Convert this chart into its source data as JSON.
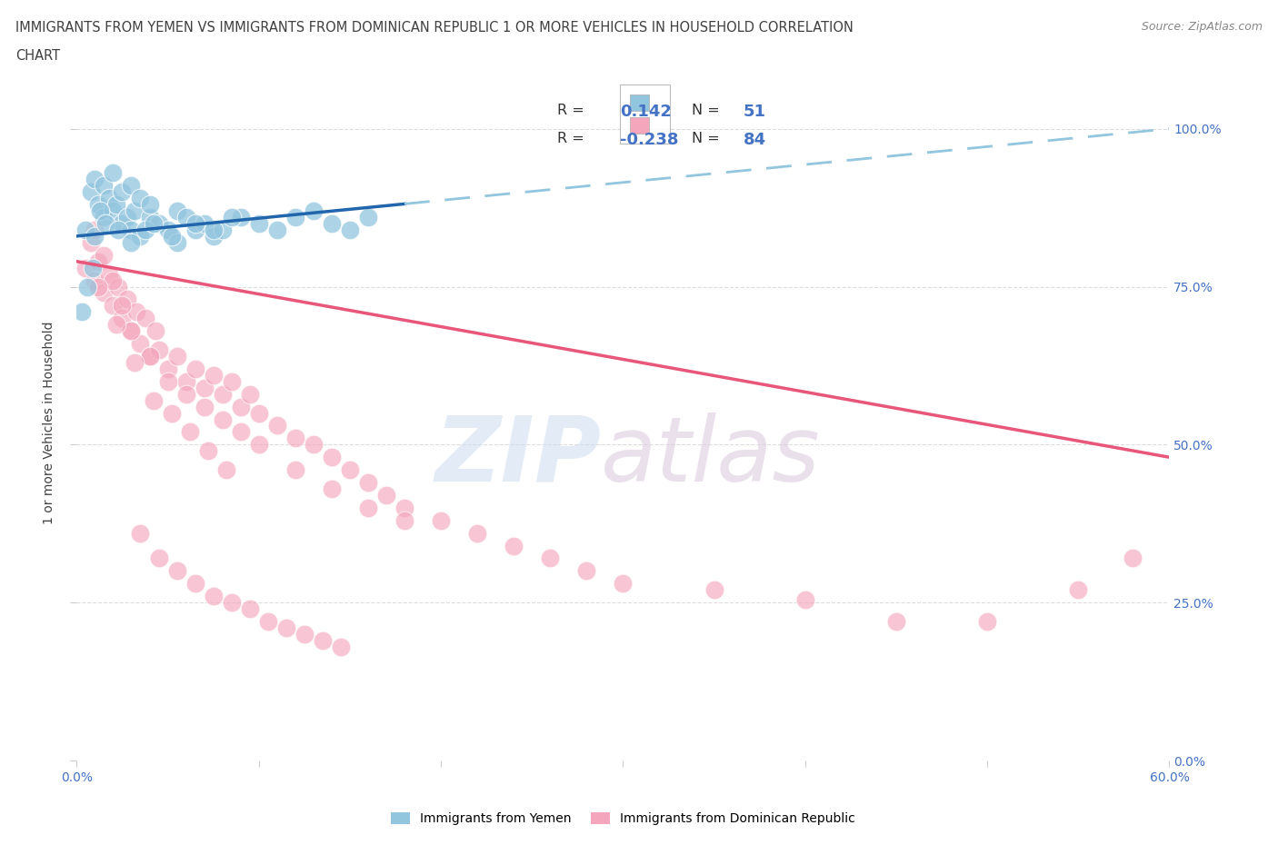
{
  "title_line1": "IMMIGRANTS FROM YEMEN VS IMMIGRANTS FROM DOMINICAN REPUBLIC 1 OR MORE VEHICLES IN HOUSEHOLD CORRELATION",
  "title_line2": "CHART",
  "source": "Source: ZipAtlas.com",
  "ylabel": "1 or more Vehicles in Household",
  "ytick_labels": [
    "0.0%",
    "25.0%",
    "50.0%",
    "75.0%",
    "100.0%"
  ],
  "ytick_values": [
    0.0,
    25.0,
    50.0,
    75.0,
    100.0
  ],
  "xlim": [
    0.0,
    60.0
  ],
  "ylim": [
    0.0,
    107.0
  ],
  "legend_R_blue": "0.142",
  "legend_N_blue": "51",
  "legend_R_pink": "-0.238",
  "legend_N_pink": "84",
  "blue_color": "#92c5de",
  "pink_color": "#f4a6bc",
  "trendline_blue_solid": "#2166ac",
  "trendline_blue_dashed": "#92c5de",
  "trendline_pink": "#e8567a",
  "blue_trend_x0": 0.0,
  "blue_trend_y0": 83.0,
  "blue_trend_x1": 60.0,
  "blue_trend_y1": 100.0,
  "blue_solid_end_x": 18.0,
  "pink_trend_x0": 0.0,
  "pink_trend_y0": 79.0,
  "pink_trend_x1": 60.0,
  "pink_trend_y1": 48.0,
  "background_color": "#ffffff",
  "grid_color": "#d9d9d9",
  "axis_label_color": "#4472c4",
  "title_color": "#404040",
  "legend_label_blue": "Immigrants from Yemen",
  "legend_label_pink": "Immigrants from Dominican Republic",
  "blue_scatter_x": [
    0.5,
    0.8,
    1.0,
    1.2,
    1.5,
    1.5,
    1.8,
    2.0,
    2.0,
    2.2,
    2.5,
    2.5,
    2.8,
    3.0,
    3.0,
    3.2,
    3.5,
    3.5,
    4.0,
    4.0,
    4.5,
    5.0,
    5.5,
    5.5,
    6.0,
    6.5,
    7.0,
    7.5,
    8.0,
    9.0,
    10.0,
    11.0,
    12.0,
    13.0,
    14.0,
    15.0,
    16.0,
    1.0,
    1.3,
    1.6,
    2.3,
    3.0,
    3.8,
    4.2,
    5.2,
    6.5,
    7.5,
    8.5,
    0.3,
    0.6,
    0.9
  ],
  "blue_scatter_y": [
    84.0,
    90.0,
    92.0,
    88.0,
    91.0,
    86.0,
    89.0,
    87.0,
    93.0,
    88.0,
    90.0,
    85.0,
    86.0,
    91.0,
    84.0,
    87.0,
    89.0,
    83.0,
    86.0,
    88.0,
    85.0,
    84.0,
    87.0,
    82.0,
    86.0,
    84.0,
    85.0,
    83.0,
    84.0,
    86.0,
    85.0,
    84.0,
    86.0,
    87.0,
    85.0,
    84.0,
    86.0,
    83.0,
    87.0,
    85.0,
    84.0,
    82.0,
    84.0,
    85.0,
    83.0,
    85.0,
    84.0,
    86.0,
    71.0,
    75.0,
    78.0
  ],
  "pink_scatter_x": [
    0.5,
    0.8,
    1.0,
    1.2,
    1.5,
    1.8,
    2.0,
    2.3,
    2.5,
    2.8,
    3.0,
    3.3,
    3.5,
    3.8,
    4.0,
    4.3,
    4.5,
    5.0,
    5.5,
    6.0,
    6.5,
    7.0,
    7.5,
    8.0,
    8.5,
    9.0,
    9.5,
    10.0,
    11.0,
    12.0,
    13.0,
    14.0,
    15.0,
    16.0,
    17.0,
    18.0,
    20.0,
    22.0,
    24.0,
    26.0,
    28.0,
    30.0,
    35.0,
    40.0,
    45.0,
    50.0,
    55.0,
    58.0,
    1.0,
    1.5,
    2.0,
    2.5,
    3.0,
    4.0,
    5.0,
    6.0,
    7.0,
    8.0,
    9.0,
    10.0,
    12.0,
    14.0,
    16.0,
    18.0,
    1.2,
    2.2,
    3.2,
    4.2,
    5.2,
    6.2,
    7.2,
    8.2,
    3.5,
    4.5,
    5.5,
    6.5,
    7.5,
    8.5,
    9.5,
    10.5,
    11.5,
    12.5,
    13.5,
    14.5
  ],
  "pink_scatter_y": [
    78.0,
    82.0,
    76.0,
    79.0,
    74.0,
    77.0,
    72.0,
    75.0,
    70.0,
    73.0,
    68.0,
    71.0,
    66.0,
    70.0,
    64.0,
    68.0,
    65.0,
    62.0,
    64.0,
    60.0,
    62.0,
    59.0,
    61.0,
    58.0,
    60.0,
    56.0,
    58.0,
    55.0,
    53.0,
    51.0,
    50.0,
    48.0,
    46.0,
    44.0,
    42.0,
    40.0,
    38.0,
    36.0,
    34.0,
    32.0,
    30.0,
    28.0,
    27.0,
    25.5,
    22.0,
    22.0,
    27.0,
    32.0,
    84.0,
    80.0,
    76.0,
    72.0,
    68.0,
    64.0,
    60.0,
    58.0,
    56.0,
    54.0,
    52.0,
    50.0,
    46.0,
    43.0,
    40.0,
    38.0,
    75.0,
    69.0,
    63.0,
    57.0,
    55.0,
    52.0,
    49.0,
    46.0,
    36.0,
    32.0,
    30.0,
    28.0,
    26.0,
    25.0,
    24.0,
    22.0,
    21.0,
    20.0,
    19.0,
    18.0
  ]
}
